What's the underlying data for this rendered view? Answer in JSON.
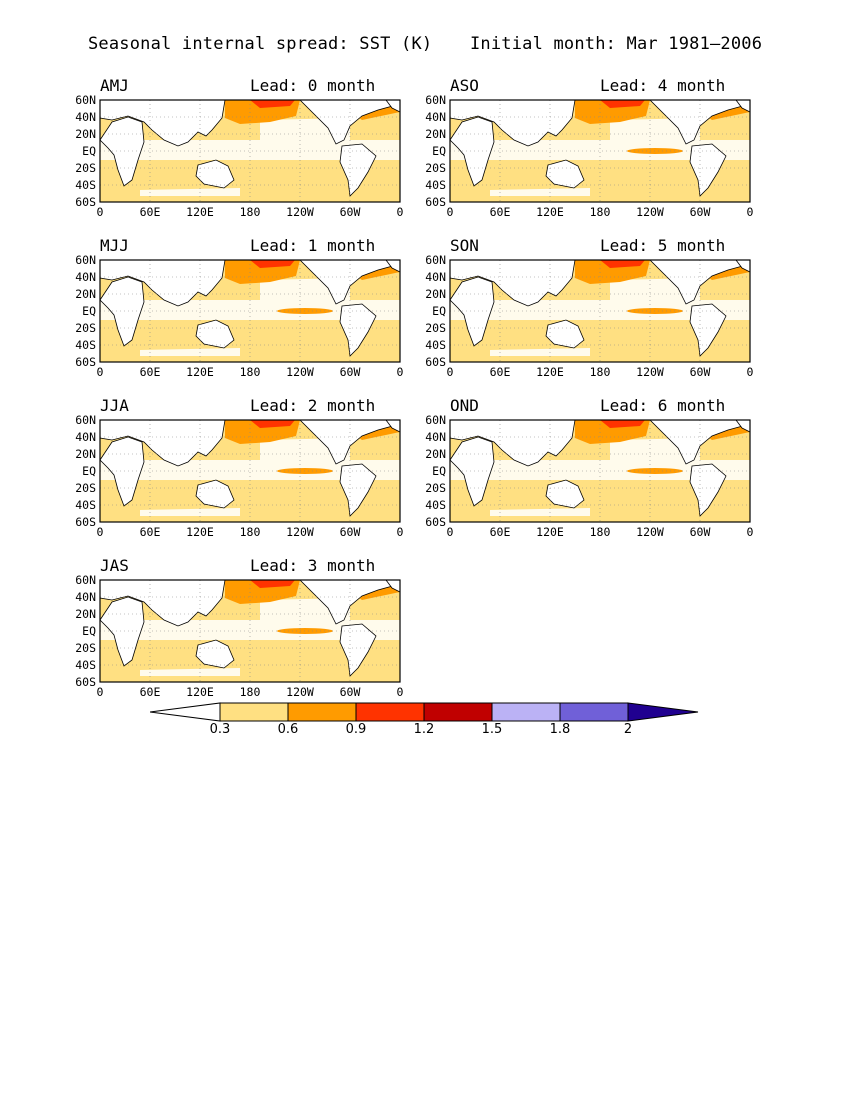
{
  "header": {
    "title": "Seasonal internal spread: SST (K)",
    "init": "Initial month: Mar 1981–2006"
  },
  "panels": [
    {
      "season": "AMJ",
      "lead": "Lead: 0 month"
    },
    {
      "season": "ASO",
      "lead": "Lead: 4 month"
    },
    {
      "season": "MJJ",
      "lead": "Lead: 1 month"
    },
    {
      "season": "SON",
      "lead": "Lead: 5 month"
    },
    {
      "season": "JJA",
      "lead": "Lead: 2 month"
    },
    {
      "season": "OND",
      "lead": "Lead: 6 month"
    },
    {
      "season": "JAS",
      "lead": "Lead: 3 month"
    }
  ],
  "axes": {
    "lat_labels": [
      "60N",
      "40N",
      "20N",
      "EQ",
      "20S",
      "40S",
      "60S"
    ],
    "lon_labels": [
      "0",
      "60E",
      "120E",
      "180",
      "120W",
      "60W",
      "0"
    ]
  },
  "colorbar": {
    "levels": [
      "0.3",
      "0.6",
      "0.9",
      "1.2",
      "1.5",
      "1.8",
      "2"
    ],
    "colors": [
      "#ffffff",
      "#ffe082",
      "#ff9b00",
      "#ff3300",
      "#c00000",
      "#bbb2f5",
      "#7060d8",
      "#200090"
    ]
  }
}
